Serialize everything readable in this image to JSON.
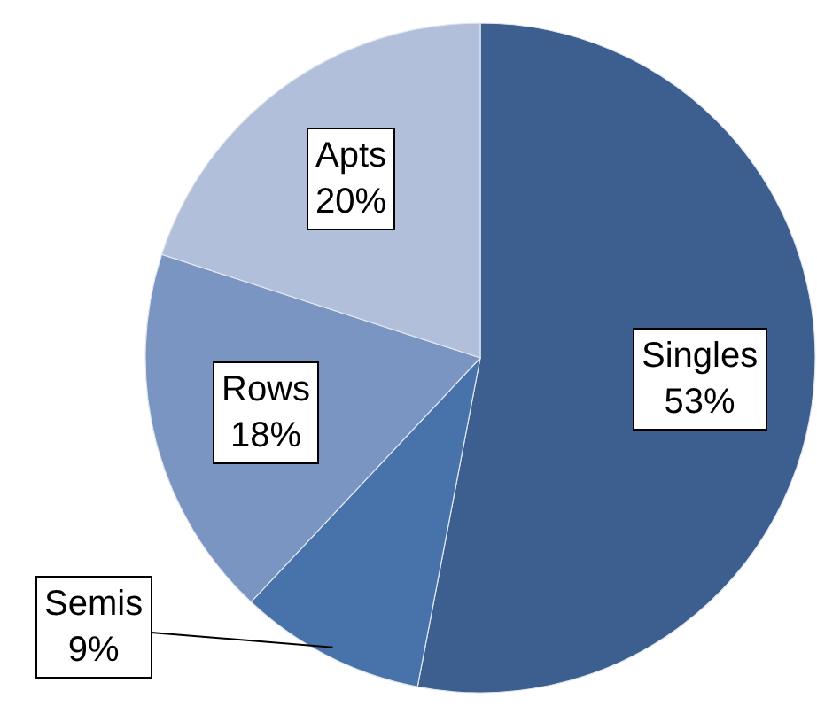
{
  "chart_data": {
    "type": "pie",
    "categories": [
      "Singles",
      "Semis",
      "Rows",
      "Apts"
    ],
    "values": [
      53,
      9,
      18,
      20
    ],
    "value_labels": [
      "53%",
      "9%",
      "18%",
      "20%"
    ],
    "colors": [
      "#3c5f90",
      "#4773aa",
      "#7b95c3",
      "#b1bfdb"
    ],
    "legend": false
  }
}
